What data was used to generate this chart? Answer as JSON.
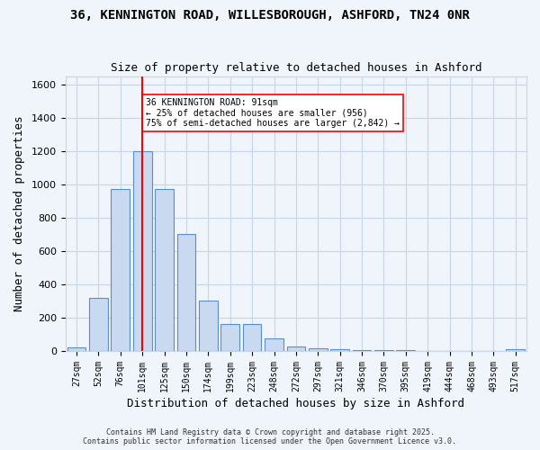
{
  "title1": "36, KENNINGTON ROAD, WILLESBOROUGH, ASHFORD, TN24 0NR",
  "title2": "Size of property relative to detached houses in Ashford",
  "xlabel": "Distribution of detached houses by size in Ashford",
  "ylabel": "Number of detached properties",
  "categories": [
    "27sqm",
    "52sqm",
    "76sqm",
    "101sqm",
    "125sqm",
    "150sqm",
    "174sqm",
    "199sqm",
    "223sqm",
    "248sqm",
    "272sqm",
    "297sqm",
    "321sqm",
    "346sqm",
    "370sqm",
    "395sqm",
    "419sqm",
    "444sqm",
    "468sqm",
    "493sqm",
    "517sqm"
  ],
  "values": [
    20,
    320,
    970,
    1200,
    970,
    700,
    305,
    160,
    160,
    75,
    25,
    15,
    10,
    5,
    5,
    5,
    3,
    3,
    3,
    3,
    10
  ],
  "bar_color": "#c9d9f0",
  "bar_edge_color": "#5b8fc9",
  "vline_x": 3,
  "vline_color": "red",
  "annotation_text": "36 KENNINGTON ROAD: 91sqm\n← 25% of detached houses are smaller (956)\n75% of semi-detached houses are larger (2,842) →",
  "annotation_box_color": "white",
  "annotation_box_edge_color": "red",
  "ylim": [
    0,
    1650
  ],
  "yticks": [
    0,
    200,
    400,
    600,
    800,
    1000,
    1200,
    1400,
    1600
  ],
  "footer1": "Contains HM Land Registry data © Crown copyright and database right 2025.",
  "footer2": "Contains public sector information licensed under the Open Government Licence v3.0.",
  "bg_color": "#f0f4fb",
  "grid_color": "#c8d4e8"
}
